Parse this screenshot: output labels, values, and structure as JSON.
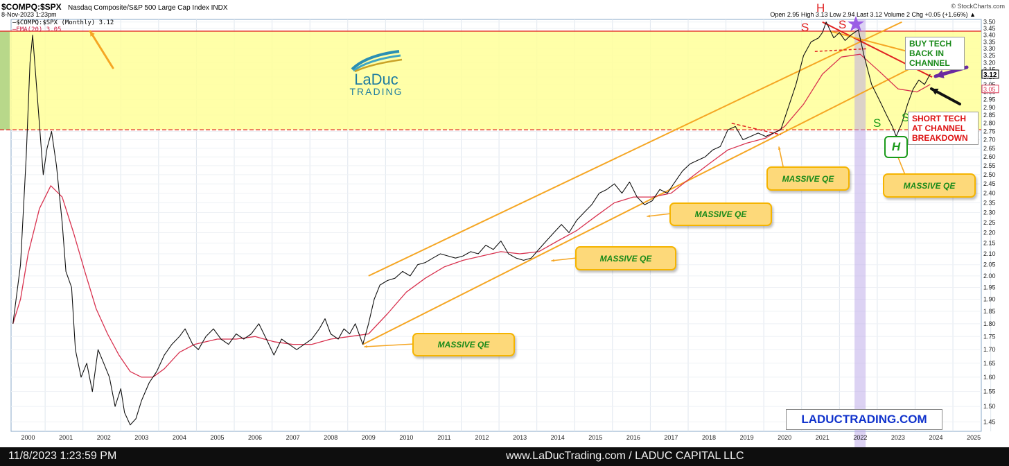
{
  "header": {
    "symbol": "$COMPQ:$SPX",
    "name": "Nasdaq Composite/S&P 500 Large Cap Index  INDX",
    "date": "8-Nov-2023 1:23pm",
    "source": "© StockCharts.com",
    "quote": "Open 2.95  High 3.13  Low 2.94  Last 3.12  Volume 2  Chg +0.05 (+1.66%) ▲"
  },
  "legend": {
    "series1": "$COMPQ:$SPX (Monthly) 3.12",
    "series2": "EMA(20) 3.05"
  },
  "logo": {
    "name": "LaDuc",
    "sub": "TRADING"
  },
  "annotations": {
    "massive_qe": "MASSIVE QE",
    "buy_tech": [
      "BUY TECH",
      "BACK IN",
      "CHANNEL"
    ],
    "short_tech": [
      "SHORT TECH",
      "AT CHANNEL",
      "BREAKDOWN"
    ],
    "site": "LADUCTRADING.COM",
    "pattern_s": "S",
    "pattern_h": "H"
  },
  "colors": {
    "price": "#111111",
    "ema": "#d8324f",
    "channel": "#f5a623",
    "zone": "#ffff99",
    "resistance": "#e02020",
    "callout": "#fdd97a",
    "pattern_red": "#e02020",
    "pattern_green": "#1a9a1a"
  },
  "chart_data": {
    "type": "line",
    "scale": "log",
    "x_ticks": [
      "2000",
      "2001",
      "2002",
      "2003",
      "2004",
      "2005",
      "2006",
      "2007",
      "2008",
      "2009",
      "2010",
      "2011",
      "2012",
      "2013",
      "2014",
      "2015",
      "2016",
      "2017",
      "2018",
      "2019",
      "2020",
      "2021",
      "2022",
      "2023",
      "2024",
      "2025"
    ],
    "y_ticks": [
      "3.50",
      "3.45",
      "3.40",
      "3.35",
      "3.30",
      "3.25",
      "3.20",
      "3.15",
      "3.10",
      "3.05",
      "3.00",
      "2.95",
      "2.90",
      "2.85",
      "2.80",
      "2.75",
      "2.70",
      "2.65",
      "2.60",
      "2.55",
      "2.50",
      "2.45",
      "2.40",
      "2.35",
      "2.30",
      "2.25",
      "2.20",
      "2.15",
      "2.10",
      "2.05",
      "2.00",
      "1.95",
      "1.90",
      "1.85",
      "1.80",
      "1.75",
      "1.70",
      "1.65",
      "1.60",
      "1.55",
      "1.50",
      "1.45"
    ],
    "y_range": [
      1.42,
      3.52
    ],
    "x_range": [
      1999.55,
      2025.2
    ],
    "last_label": "3.12",
    "ema_label": "3.05",
    "series": [
      {
        "name": "$COMPQ:$SPX (Monthly)",
        "points": [
          [
            1999.6,
            1.8
          ],
          [
            1999.8,
            2.05
          ],
          [
            1999.95,
            2.6
          ],
          [
            2000.05,
            3.2
          ],
          [
            2000.12,
            3.4
          ],
          [
            2000.25,
            2.95
          ],
          [
            2000.4,
            2.5
          ],
          [
            2000.5,
            2.65
          ],
          [
            2000.62,
            2.75
          ],
          [
            2000.75,
            2.55
          ],
          [
            2000.9,
            2.25
          ],
          [
            2001.0,
            2.02
          ],
          [
            2001.15,
            1.95
          ],
          [
            2001.25,
            1.7
          ],
          [
            2001.4,
            1.6
          ],
          [
            2001.55,
            1.65
          ],
          [
            2001.7,
            1.55
          ],
          [
            2001.85,
            1.7
          ],
          [
            2002.0,
            1.65
          ],
          [
            2002.15,
            1.6
          ],
          [
            2002.3,
            1.5
          ],
          [
            2002.45,
            1.56
          ],
          [
            2002.55,
            1.48
          ],
          [
            2002.7,
            1.44
          ],
          [
            2002.85,
            1.46
          ],
          [
            2003.0,
            1.52
          ],
          [
            2003.2,
            1.58
          ],
          [
            2003.4,
            1.62
          ],
          [
            2003.6,
            1.68
          ],
          [
            2003.8,
            1.72
          ],
          [
            2004.0,
            1.75
          ],
          [
            2004.15,
            1.78
          ],
          [
            2004.35,
            1.72
          ],
          [
            2004.5,
            1.7
          ],
          [
            2004.7,
            1.75
          ],
          [
            2004.9,
            1.78
          ],
          [
            2005.1,
            1.74
          ],
          [
            2005.3,
            1.72
          ],
          [
            2005.5,
            1.76
          ],
          [
            2005.7,
            1.74
          ],
          [
            2005.9,
            1.76
          ],
          [
            2006.1,
            1.8
          ],
          [
            2006.3,
            1.74
          ],
          [
            2006.5,
            1.68
          ],
          [
            2006.7,
            1.74
          ],
          [
            2006.9,
            1.72
          ],
          [
            2007.1,
            1.7
          ],
          [
            2007.3,
            1.72
          ],
          [
            2007.5,
            1.74
          ],
          [
            2007.7,
            1.78
          ],
          [
            2007.85,
            1.82
          ],
          [
            2008.0,
            1.76
          ],
          [
            2008.2,
            1.74
          ],
          [
            2008.35,
            1.78
          ],
          [
            2008.5,
            1.76
          ],
          [
            2008.65,
            1.8
          ],
          [
            2008.85,
            1.72
          ],
          [
            2009.0,
            1.8
          ],
          [
            2009.15,
            1.9
          ],
          [
            2009.3,
            1.96
          ],
          [
            2009.5,
            1.98
          ],
          [
            2009.7,
            1.99
          ],
          [
            2009.9,
            2.02
          ],
          [
            2010.1,
            2.0
          ],
          [
            2010.3,
            2.05
          ],
          [
            2010.5,
            2.06
          ],
          [
            2010.7,
            2.08
          ],
          [
            2010.9,
            2.1
          ],
          [
            2011.1,
            2.09
          ],
          [
            2011.3,
            2.08
          ],
          [
            2011.5,
            2.09
          ],
          [
            2011.7,
            2.11
          ],
          [
            2011.9,
            2.1
          ],
          [
            2012.1,
            2.14
          ],
          [
            2012.3,
            2.12
          ],
          [
            2012.5,
            2.16
          ],
          [
            2012.7,
            2.1
          ],
          [
            2012.9,
            2.08
          ],
          [
            2013.1,
            2.07
          ],
          [
            2013.3,
            2.08
          ],
          [
            2013.5,
            2.12
          ],
          [
            2013.7,
            2.16
          ],
          [
            2013.9,
            2.2
          ],
          [
            2014.1,
            2.24
          ],
          [
            2014.3,
            2.2
          ],
          [
            2014.5,
            2.26
          ],
          [
            2014.7,
            2.3
          ],
          [
            2014.9,
            2.34
          ],
          [
            2015.1,
            2.4
          ],
          [
            2015.3,
            2.42
          ],
          [
            2015.5,
            2.45
          ],
          [
            2015.7,
            2.4
          ],
          [
            2015.9,
            2.46
          ],
          [
            2016.1,
            2.38
          ],
          [
            2016.3,
            2.34
          ],
          [
            2016.5,
            2.36
          ],
          [
            2016.7,
            2.42
          ],
          [
            2016.9,
            2.4
          ],
          [
            2017.1,
            2.46
          ],
          [
            2017.3,
            2.52
          ],
          [
            2017.5,
            2.56
          ],
          [
            2017.7,
            2.58
          ],
          [
            2017.9,
            2.6
          ],
          [
            2018.1,
            2.64
          ],
          [
            2018.3,
            2.66
          ],
          [
            2018.5,
            2.76
          ],
          [
            2018.7,
            2.78
          ],
          [
            2018.9,
            2.7
          ],
          [
            2019.1,
            2.72
          ],
          [
            2019.3,
            2.74
          ],
          [
            2019.5,
            2.72
          ],
          [
            2019.7,
            2.74
          ],
          [
            2019.9,
            2.76
          ],
          [
            2020.1,
            2.9
          ],
          [
            2020.3,
            3.05
          ],
          [
            2020.5,
            3.25
          ],
          [
            2020.7,
            3.35
          ],
          [
            2020.9,
            3.38
          ],
          [
            2021.0,
            3.42
          ],
          [
            2021.1,
            3.5
          ],
          [
            2021.3,
            3.38
          ],
          [
            2021.45,
            3.42
          ],
          [
            2021.6,
            3.36
          ],
          [
            2021.75,
            3.4
          ],
          [
            2021.95,
            3.44
          ],
          [
            2022.1,
            3.25
          ],
          [
            2022.3,
            3.05
          ],
          [
            2022.5,
            2.95
          ],
          [
            2022.7,
            2.85
          ],
          [
            2022.85,
            2.78
          ],
          [
            2022.95,
            2.72
          ],
          [
            2023.1,
            2.8
          ],
          [
            2023.25,
            2.92
          ],
          [
            2023.4,
            3.02
          ],
          [
            2023.55,
            3.08
          ],
          [
            2023.7,
            3.05
          ],
          [
            2023.85,
            3.12
          ]
        ]
      },
      {
        "name": "EMA(20)",
        "points": [
          [
            1999.6,
            1.8
          ],
          [
            1999.8,
            1.9
          ],
          [
            2000.0,
            2.1
          ],
          [
            2000.3,
            2.32
          ],
          [
            2000.6,
            2.44
          ],
          [
            2000.9,
            2.38
          ],
          [
            2001.2,
            2.2
          ],
          [
            2001.5,
            2.02
          ],
          [
            2001.8,
            1.86
          ],
          [
            2002.1,
            1.76
          ],
          [
            2002.4,
            1.68
          ],
          [
            2002.7,
            1.62
          ],
          [
            2003.0,
            1.6
          ],
          [
            2003.3,
            1.6
          ],
          [
            2003.6,
            1.63
          ],
          [
            2004.0,
            1.69
          ],
          [
            2004.4,
            1.72
          ],
          [
            2005.0,
            1.74
          ],
          [
            2005.5,
            1.74
          ],
          [
            2006.0,
            1.75
          ],
          [
            2006.5,
            1.73
          ],
          [
            2007.0,
            1.72
          ],
          [
            2007.5,
            1.72
          ],
          [
            2008.0,
            1.74
          ],
          [
            2008.5,
            1.75
          ],
          [
            2009.0,
            1.76
          ],
          [
            2009.5,
            1.84
          ],
          [
            2010.0,
            1.93
          ],
          [
            2010.5,
            1.99
          ],
          [
            2011.0,
            2.04
          ],
          [
            2011.5,
            2.07
          ],
          [
            2012.0,
            2.09
          ],
          [
            2012.5,
            2.11
          ],
          [
            2013.0,
            2.1
          ],
          [
            2013.5,
            2.11
          ],
          [
            2014.0,
            2.16
          ],
          [
            2014.5,
            2.21
          ],
          [
            2015.0,
            2.28
          ],
          [
            2015.5,
            2.35
          ],
          [
            2016.0,
            2.38
          ],
          [
            2016.5,
            2.38
          ],
          [
            2017.0,
            2.4
          ],
          [
            2017.5,
            2.48
          ],
          [
            2018.0,
            2.56
          ],
          [
            2018.5,
            2.64
          ],
          [
            2019.0,
            2.68
          ],
          [
            2019.5,
            2.71
          ],
          [
            2020.0,
            2.78
          ],
          [
            2020.5,
            2.92
          ],
          [
            2021.0,
            3.12
          ],
          [
            2021.5,
            3.24
          ],
          [
            2022.0,
            3.26
          ],
          [
            2022.5,
            3.14
          ],
          [
            2023.0,
            3.02
          ],
          [
            2023.5,
            3.0
          ],
          [
            2023.85,
            3.05
          ]
        ]
      }
    ],
    "channel": {
      "upper": [
        [
          2009.0,
          2.0
        ],
        [
          2023.1,
          3.5
        ]
      ],
      "lower": [
        [
          2008.85,
          1.72
        ],
        [
          2024.0,
          3.25
        ]
      ],
      "mid_upper": [
        [
          2019.7,
          2.76
        ],
        [
          2024.0,
          3.25
        ]
      ]
    },
    "zone": [
      2.76,
      3.43
    ],
    "resistance_line": [
      [
        2021.0,
        3.5
      ],
      [
        2023.9,
        3.1
      ]
    ],
    "shaded_month_x": 2021.85
  }
}
